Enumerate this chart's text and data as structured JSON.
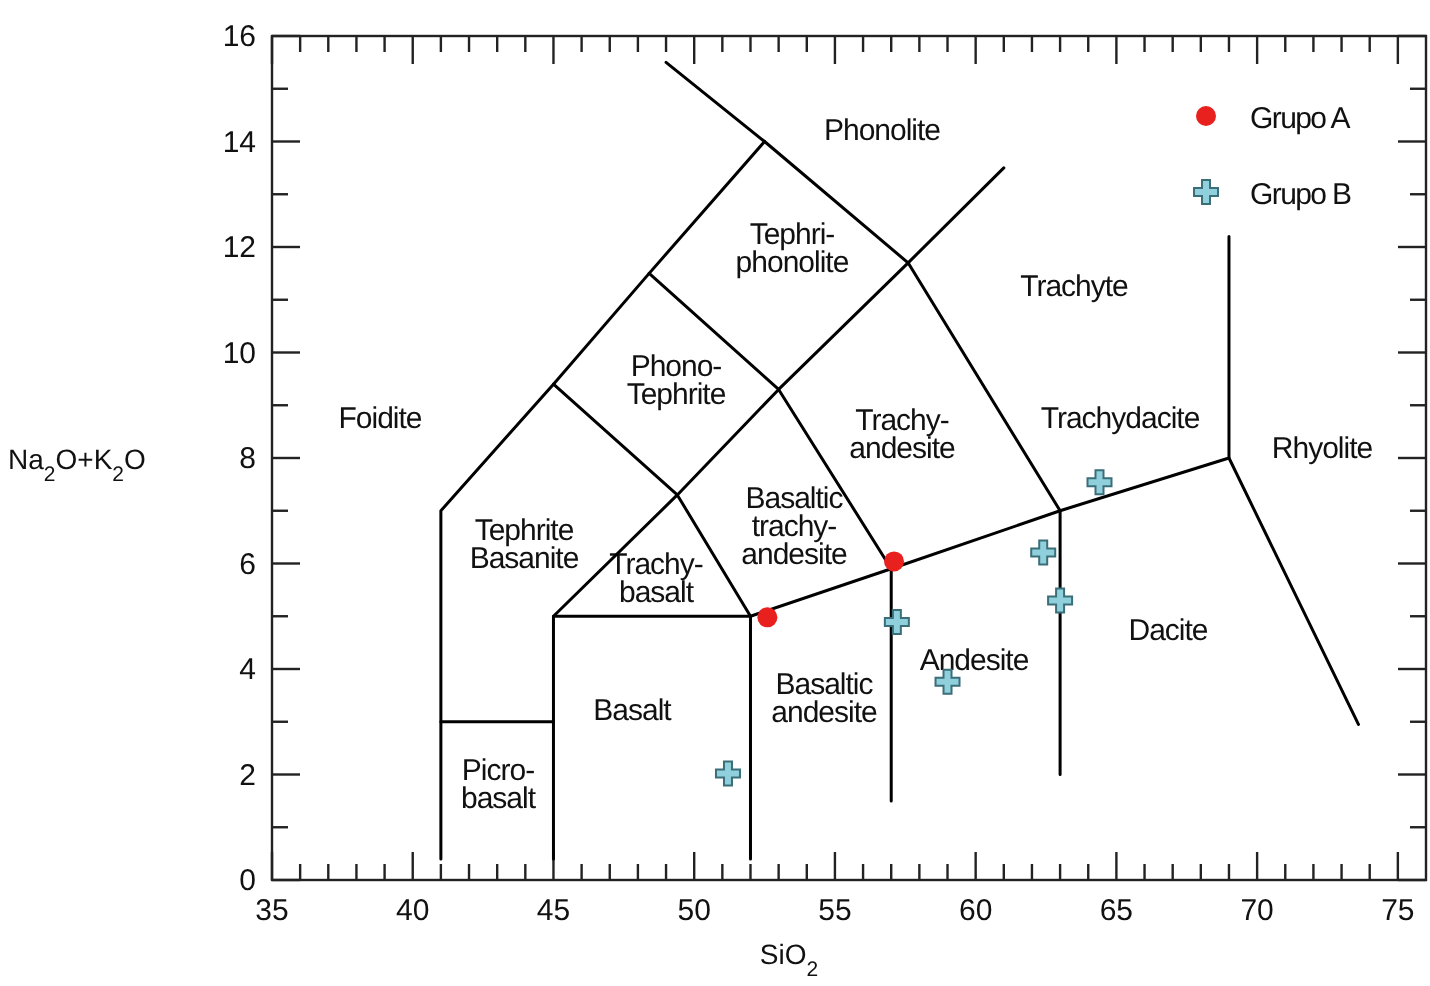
{
  "chart_data": {
    "type": "scatter",
    "xlabel": "SiO$_{2}$",
    "ylabel": "Na$_{2}$O+K$_{2}$O",
    "xlim": [
      35,
      76
    ],
    "ylim": [
      0,
      16
    ],
    "xticks": [
      35,
      {
        "value": 36,
        "label": null
      },
      {
        "value": 37,
        "label": null
      },
      {
        "value": 38,
        "label": null
      },
      {
        "value": 39,
        "label": null
      },
      40,
      {
        "value": 41,
        "label": null
      },
      {
        "value": 42,
        "label": null
      },
      {
        "value": 43,
        "label": null
      },
      {
        "value": 44,
        "label": null
      },
      45,
      {
        "value": 46,
        "label": null
      },
      {
        "value": 47,
        "label": null
      },
      {
        "value": 48,
        "label": null
      },
      {
        "value": 49,
        "label": null
      },
      50,
      {
        "value": 51,
        "label": null
      },
      {
        "value": 52,
        "label": null
      },
      {
        "value": 53,
        "label": null
      },
      {
        "value": 54,
        "label": null
      },
      55,
      {
        "value": 56,
        "label": null
      },
      {
        "value": 57,
        "label": null
      },
      {
        "value": 58,
        "label": null
      },
      {
        "value": 59,
        "label": null
      },
      60,
      {
        "value": 61,
        "label": null
      },
      {
        "value": 62,
        "label": null
      },
      {
        "value": 63,
        "label": null
      },
      {
        "value": 64,
        "label": null
      },
      65,
      {
        "value": 66,
        "label": null
      },
      {
        "value": 67,
        "label": null
      },
      {
        "value": 68,
        "label": null
      },
      {
        "value": 69,
        "label": null
      },
      70,
      {
        "value": 71,
        "label": null
      },
      {
        "value": 72,
        "label": null
      },
      {
        "value": 73,
        "label": null
      },
      {
        "value": 74,
        "label": null
      },
      75
    ],
    "yticks": [
      0,
      {
        "value": 1,
        "label": null
      },
      2,
      {
        "value": 3,
        "label": null
      },
      4,
      {
        "value": 5,
        "label": null
      },
      6,
      {
        "value": 7,
        "label": null
      },
      8,
      {
        "value": 9,
        "label": null
      },
      10,
      {
        "value": 11,
        "label": null
      },
      12,
      {
        "value": 13,
        "label": null
      },
      14,
      {
        "value": 15,
        "label": null
      },
      16
    ],
    "grid": false,
    "legend": "top right",
    "series": [
      {
        "type": "line",
        "color": "#000000",
        "marker": "none",
        "x": [
          41,
          41,
          45,
          48.4,
          52.5
        ],
        "values": [
          0.4,
          7,
          9.4,
          11.5,
          14
        ]
      },
      {
        "type": "line",
        "color": "#000000",
        "marker": "none",
        "x": [
          49,
          52.5,
          57.6,
          63,
          63
        ],
        "values": [
          15.5,
          14,
          11.7,
          7,
          2
        ]
      },
      {
        "type": "line",
        "color": "#000000",
        "marker": "none",
        "x": [
          41,
          45
        ],
        "values": [
          3,
          3
        ]
      },
      {
        "type": "line",
        "color": "#000000",
        "marker": "none",
        "x": [
          45,
          45,
          52,
          52
        ],
        "values": [
          0.4,
          5,
          5,
          0.4
        ]
      },
      {
        "type": "line",
        "color": "#000000",
        "marker": "none",
        "x": [
          45,
          49.4,
          53,
          57.6,
          61
        ],
        "values": [
          5,
          7.3,
          9.3,
          11.7,
          13.5
        ]
      },
      {
        "type": "line",
        "color": "#000000",
        "marker": "none",
        "x": [
          45,
          49.4,
          52
        ],
        "values": [
          9.4,
          7.3,
          5
        ]
      },
      {
        "type": "line",
        "color": "#000000",
        "marker": "none",
        "x": [
          48.4,
          53,
          57,
          57
        ],
        "values": [
          11.5,
          9.3,
          5.9,
          1.5
        ]
      },
      {
        "type": "line",
        "color": "#000000",
        "marker": "none",
        "x": [
          52,
          57,
          63,
          69,
          69
        ],
        "values": [
          5,
          5.9,
          7,
          8,
          12.2
        ]
      },
      {
        "type": "line",
        "color": "#000000",
        "marker": "none",
        "x": [
          69,
          73.6
        ],
        "values": [
          8,
          2.95
        ]
      },
      {
        "name": "Grupo A",
        "color": "#e8211f",
        "marker": "circle",
        "x": [
          52.6,
          57.1
        ],
        "values": [
          4.98,
          6.04
        ]
      },
      {
        "name": "Grupo B",
        "color": "#8fd0dc",
        "marker": "cross",
        "x": [
          51.2,
          57.2,
          59,
          62.4,
          63,
          64.4
        ],
        "values": [
          2.02,
          4.89,
          3.76,
          6.21,
          5.3,
          7.54
        ]
      }
    ],
    "annotations": [
      "Phonolite",
      "Tephri-\nphonolite",
      "Trachyte",
      "Phono-\nTephrite",
      "Foidite",
      "Trachy-\nandesite",
      "Trachydacite",
      "Rhyolite",
      "Tephrite\nBasanite",
      "Basaltic\ntrachy-\nandesite",
      "Trachy-\nbasalt",
      "Dacite",
      "Andesite",
      "Basaltic\nandesite",
      "Basalt",
      "Picro-\nbasalt"
    ]
  }
}
